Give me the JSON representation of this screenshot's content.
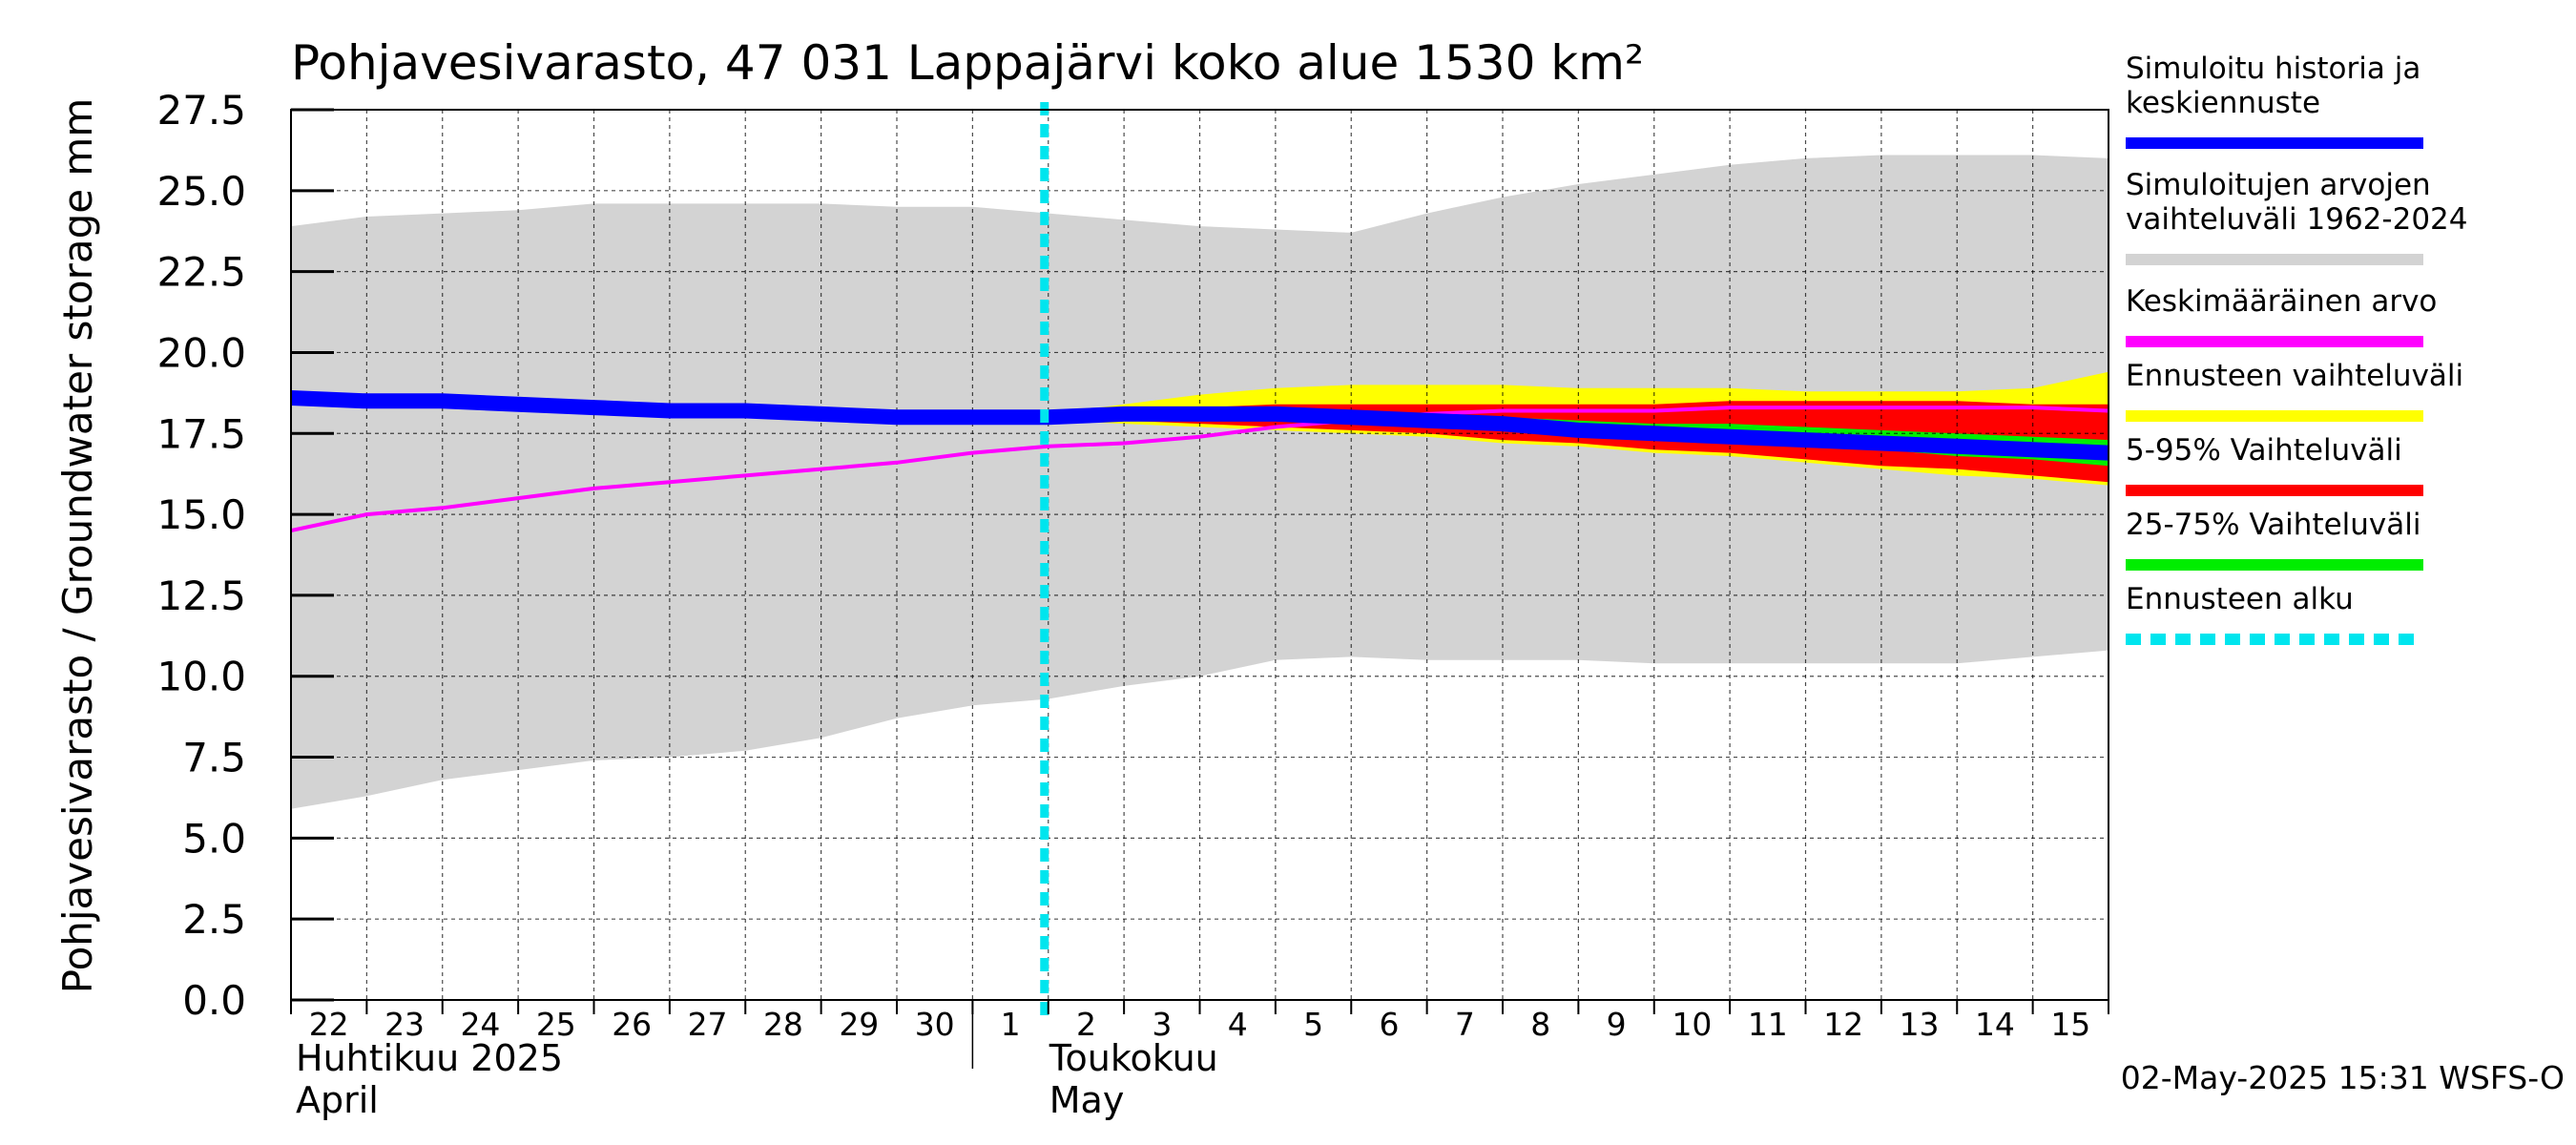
{
  "chart_data": {
    "type": "area",
    "title": "Pohjavesivarasto, 47 031 Lappajärvi koko alue 1530 km²",
    "ylabel": "Pohjavesivarasto / Groundwater storage   mm",
    "ylim": [
      0,
      27.5
    ],
    "yticks": [
      "0.0",
      "2.5",
      "5.0",
      "7.5",
      "10.0",
      "12.5",
      "15.0",
      "17.5",
      "20.0",
      "22.5",
      "25.0",
      "27.5"
    ],
    "grid": true,
    "legend_position": "right",
    "x_day_labels": [
      "22",
      "23",
      "24",
      "25",
      "26",
      "27",
      "28",
      "29",
      "30",
      "1",
      "2",
      "3",
      "4",
      "5",
      "6",
      "7",
      "8",
      "9",
      "10",
      "11",
      "12",
      "13",
      "14",
      "15"
    ],
    "month_labels": [
      {
        "fi": "Huhtikuu  2025",
        "en": "April"
      },
      {
        "fi": "Toukokuu",
        "en": "May"
      }
    ],
    "x": [
      "2025-04-22",
      "2025-04-23",
      "2025-04-24",
      "2025-04-25",
      "2025-04-26",
      "2025-04-27",
      "2025-04-28",
      "2025-04-29",
      "2025-04-30",
      "2025-05-01",
      "2025-05-02",
      "2025-05-03",
      "2025-05-04",
      "2025-05-05",
      "2025-05-06",
      "2025-05-07",
      "2025-05-08",
      "2025-05-09",
      "2025-05-10",
      "2025-05-11",
      "2025-05-12",
      "2025-05-13",
      "2025-05-14",
      "2025-05-15",
      "2025-05-16"
    ],
    "forecast_start": "2025-05-02",
    "series": [
      {
        "name": "Simuloitujen arvojen vaihteluväli 1962-2024",
        "color": "#d3d3d3",
        "x": [
          "2025-04-22",
          "2025-04-23",
          "2025-04-24",
          "2025-04-25",
          "2025-04-26",
          "2025-04-27",
          "2025-04-28",
          "2025-04-29",
          "2025-04-30",
          "2025-05-01",
          "2025-05-02",
          "2025-05-03",
          "2025-05-04",
          "2025-05-05",
          "2025-05-06",
          "2025-05-07",
          "2025-05-08",
          "2025-05-09",
          "2025-05-10",
          "2025-05-11",
          "2025-05-12",
          "2025-05-13",
          "2025-05-14",
          "2025-05-15",
          "2025-05-16"
        ],
        "low": [
          5.9,
          6.3,
          6.8,
          7.1,
          7.4,
          7.5,
          7.7,
          8.1,
          8.7,
          9.1,
          9.3,
          9.7,
          10.0,
          10.5,
          10.6,
          10.5,
          10.5,
          10.5,
          10.4,
          10.4,
          10.4,
          10.4,
          10.4,
          10.6,
          10.8
        ],
        "high": [
          23.9,
          24.2,
          24.3,
          24.4,
          24.6,
          24.6,
          24.6,
          24.6,
          24.5,
          24.5,
          24.3,
          24.1,
          23.9,
          23.8,
          23.7,
          24.3,
          24.8,
          25.2,
          25.5,
          25.8,
          26.0,
          26.1,
          26.1,
          26.1,
          26.0
        ]
      },
      {
        "name": "Ennusteen vaihteluväli",
        "color": "#ffff00",
        "x": [
          "2025-05-02",
          "2025-05-03",
          "2025-05-04",
          "2025-05-05",
          "2025-05-06",
          "2025-05-07",
          "2025-05-08",
          "2025-05-09",
          "2025-05-10",
          "2025-05-11",
          "2025-05-12",
          "2025-05-13",
          "2025-05-14",
          "2025-05-15",
          "2025-05-16"
        ],
        "low": [
          17.9,
          17.8,
          17.7,
          17.6,
          17.5,
          17.4,
          17.2,
          17.1,
          16.9,
          16.8,
          16.6,
          16.4,
          16.2,
          16.1,
          15.9
        ],
        "high": [
          18.1,
          18.4,
          18.7,
          18.9,
          19.0,
          19.0,
          19.0,
          18.9,
          18.9,
          18.9,
          18.8,
          18.8,
          18.8,
          18.9,
          19.4
        ]
      },
      {
        "name": "5-95% Vaihteluväli",
        "color": "#ff0000",
        "x": [
          "2025-05-02",
          "2025-05-03",
          "2025-05-04",
          "2025-05-05",
          "2025-05-06",
          "2025-05-07",
          "2025-05-08",
          "2025-05-09",
          "2025-05-10",
          "2025-05-11",
          "2025-05-12",
          "2025-05-13",
          "2025-05-14",
          "2025-05-15",
          "2025-05-16"
        ],
        "low": [
          17.9,
          17.9,
          17.8,
          17.7,
          17.6,
          17.5,
          17.3,
          17.2,
          17.0,
          16.9,
          16.7,
          16.5,
          16.4,
          16.2,
          16.0
        ],
        "high": [
          18.1,
          18.2,
          18.3,
          18.4,
          18.4,
          18.4,
          18.4,
          18.4,
          18.4,
          18.5,
          18.5,
          18.5,
          18.5,
          18.4,
          18.4
        ]
      },
      {
        "name": "25-75% Vaihteluväli",
        "color": "#00ee00",
        "x": [
          "2025-05-02",
          "2025-05-03",
          "2025-05-04",
          "2025-05-05",
          "2025-05-06",
          "2025-05-07",
          "2025-05-08",
          "2025-05-09",
          "2025-05-10",
          "2025-05-11",
          "2025-05-12",
          "2025-05-13",
          "2025-05-14",
          "2025-05-15",
          "2025-05-16"
        ],
        "low": [
          18.0,
          18.0,
          17.9,
          17.9,
          17.8,
          17.7,
          17.6,
          17.5,
          17.4,
          17.2,
          17.1,
          17.0,
          16.8,
          16.7,
          16.5
        ],
        "high": [
          18.1,
          18.1,
          18.1,
          18.2,
          18.2,
          18.1,
          18.0,
          17.9,
          17.8,
          17.8,
          17.7,
          17.6,
          17.5,
          17.4,
          17.3
        ]
      },
      {
        "name": "Keskimääräinen arvo",
        "color": "#ff00ff",
        "x": [
          "2025-04-22",
          "2025-04-23",
          "2025-04-24",
          "2025-04-25",
          "2025-04-26",
          "2025-04-27",
          "2025-04-28",
          "2025-04-29",
          "2025-04-30",
          "2025-05-01",
          "2025-05-02",
          "2025-05-03",
          "2025-05-04",
          "2025-05-05",
          "2025-05-06",
          "2025-05-07",
          "2025-05-08",
          "2025-05-09",
          "2025-05-10",
          "2025-05-11",
          "2025-05-12",
          "2025-05-13",
          "2025-05-14",
          "2025-05-15",
          "2025-05-16"
        ],
        "values": [
          14.5,
          15.0,
          15.2,
          15.5,
          15.8,
          16.0,
          16.2,
          16.4,
          16.6,
          16.9,
          17.1,
          17.2,
          17.4,
          17.7,
          17.9,
          18.1,
          18.2,
          18.2,
          18.2,
          18.3,
          18.3,
          18.3,
          18.3,
          18.3,
          18.2
        ]
      },
      {
        "name": "Simuloitu historia ja keskiennuste",
        "color": "#0000ff",
        "x": [
          "2025-04-22",
          "2025-04-23",
          "2025-04-24",
          "2025-04-25",
          "2025-04-26",
          "2025-04-27",
          "2025-04-28",
          "2025-04-29",
          "2025-04-30",
          "2025-05-01",
          "2025-05-02",
          "2025-05-03",
          "2025-05-04",
          "2025-05-05",
          "2025-05-06",
          "2025-05-07",
          "2025-05-08",
          "2025-05-09",
          "2025-05-10",
          "2025-05-11",
          "2025-05-12",
          "2025-05-13",
          "2025-05-14",
          "2025-05-15",
          "2025-05-16"
        ],
        "values": [
          18.6,
          18.5,
          18.5,
          18.4,
          18.3,
          18.2,
          18.2,
          18.1,
          18.0,
          18.0,
          18.0,
          18.1,
          18.1,
          18.1,
          18.0,
          17.9,
          17.8,
          17.6,
          17.5,
          17.4,
          17.3,
          17.2,
          17.1,
          17.0,
          16.9
        ]
      }
    ],
    "legend": [
      {
        "lines": [
          "Simuloitu historia ja",
          "keskiennuste"
        ],
        "color": "#0000ff",
        "style": "solid"
      },
      {
        "lines": [
          "Simuloitujen arvojen",
          "vaihteluväli 1962-2024"
        ],
        "color": "#d3d3d3",
        "style": "solid"
      },
      {
        "lines": [
          "Keskimääräinen arvo"
        ],
        "color": "#ff00ff",
        "style": "solid"
      },
      {
        "lines": [
          "Ennusteen vaihteluväli"
        ],
        "color": "#ffff00",
        "style": "solid"
      },
      {
        "lines": [
          "5-95% Vaihteluväli"
        ],
        "color": "#ff0000",
        "style": "solid"
      },
      {
        "lines": [
          "25-75% Vaihteluväli"
        ],
        "color": "#00ee00",
        "style": "solid"
      },
      {
        "lines": [
          "Ennusteen alku"
        ],
        "color": "#00e5ee",
        "style": "dashed"
      }
    ],
    "footer": "02-May-2025 15:31 WSFS-O"
  }
}
